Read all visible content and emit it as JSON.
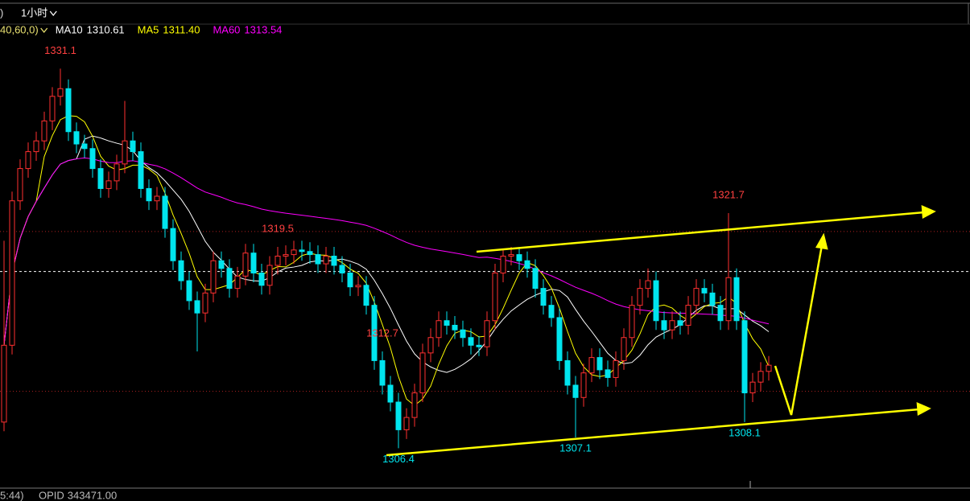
{
  "toolbar": {
    "left": ")",
    "period": "1小时"
  },
  "chart_data": {
    "type": "candlestick",
    "params": "40,60,0)",
    "indicators": [
      {
        "name": "MA10",
        "value": 1310.61,
        "color": "#ffffff"
      },
      {
        "name": "MA5",
        "value": 1311.4,
        "value_label": "1311.40",
        "color": "#ffff00"
      },
      {
        "name": "MA60",
        "value": 1313.54,
        "color": "#ff00ff"
      }
    ],
    "ylim": [
      1303.8,
      1334.0
    ],
    "up_color": "#ff3030",
    "down_color": "#00e5ee",
    "open": [
      1308.1,
      1313.1,
      1322.5,
      1324.6,
      1325.7,
      1326.4,
      1327.7,
      1329.3,
      1329.8,
      1327.0,
      1326.2,
      1325.9,
      1324.6,
      1323.3,
      1323.8,
      1324.9,
      1326.4,
      1325.7,
      1323.3,
      1322.5,
      1322.8,
      1320.7,
      1318.6,
      1317.3,
      1316.0,
      1315.2,
      1316.5,
      1318.6,
      1318.1,
      1316.8,
      1317.6,
      1319.1,
      1317.8,
      1317.0,
      1318.3,
      1318.9,
      1319.0,
      1319.3,
      1319.2,
      1319.0,
      1318.4,
      1318.9,
      1318.3,
      1317.8,
      1316.9,
      1317.0,
      1315.7,
      1312.1,
      1310.5,
      1309.4,
      1307.6,
      1308.4,
      1310.0,
      1312.6,
      1313.6,
      1314.7,
      1314.4,
      1314.1,
      1313.6,
      1313.1,
      1313.0,
      1314.7,
      1317.8,
      1318.9,
      1319.0,
      1318.6,
      1318.1,
      1316.8,
      1315.7,
      1314.9,
      1312.1,
      1310.5,
      1309.7,
      1311.3,
      1312.3,
      1311.5,
      1311.0,
      1312.1,
      1313.6,
      1315.7,
      1316.8,
      1317.3,
      1314.7,
      1314.1,
      1314.7,
      1314.4,
      1315.7,
      1316.8,
      1316.5,
      1315.7,
      1314.7,
      1317.5,
      1314.7,
      1310.0,
      1310.7,
      1311.4
    ],
    "high": [
      1319.9,
      1323.1,
      1325.2,
      1326.3,
      1327.0,
      1328.3,
      1329.9,
      1331.1,
      1330.4,
      1327.6,
      1326.8,
      1326.5,
      1325.2,
      1324.4,
      1325.5,
      1329.0,
      1327.0,
      1326.3,
      1323.9,
      1323.4,
      1323.4,
      1321.3,
      1319.2,
      1317.9,
      1316.6,
      1317.1,
      1319.2,
      1319.2,
      1318.7,
      1318.2,
      1319.7,
      1319.7,
      1318.4,
      1318.9,
      1319.5,
      1319.6,
      1319.9,
      1319.9,
      1319.8,
      1319.6,
      1319.5,
      1319.5,
      1318.9,
      1318.4,
      1317.6,
      1317.6,
      1316.3,
      1312.7,
      1311.1,
      1310.0,
      1309.0,
      1310.6,
      1313.2,
      1314.2,
      1315.3,
      1315.3,
      1315.0,
      1314.7,
      1314.2,
      1313.7,
      1315.3,
      1318.4,
      1319.4,
      1319.5,
      1319.4,
      1319.2,
      1318.7,
      1317.4,
      1316.3,
      1315.5,
      1312.7,
      1311.1,
      1311.9,
      1312.9,
      1312.9,
      1312.1,
      1312.7,
      1314.2,
      1316.3,
      1317.4,
      1318.1,
      1317.9,
      1315.3,
      1315.3,
      1315.3,
      1316.3,
      1317.4,
      1317.4,
      1317.1,
      1316.3,
      1321.7,
      1318.1,
      1315.3,
      1311.3,
      1312.0,
      1312.4
    ],
    "low": [
      1307.5,
      1312.5,
      1321.9,
      1324.0,
      1325.1,
      1325.8,
      1327.1,
      1328.7,
      1326.4,
      1325.6,
      1325.3,
      1324.0,
      1322.7,
      1322.7,
      1323.2,
      1324.3,
      1325.1,
      1322.7,
      1321.9,
      1321.9,
      1320.1,
      1318.0,
      1316.7,
      1315.4,
      1312.7,
      1314.6,
      1315.9,
      1317.5,
      1316.2,
      1316.2,
      1317.0,
      1317.2,
      1316.4,
      1316.4,
      1317.7,
      1318.3,
      1318.4,
      1318.6,
      1318.4,
      1317.8,
      1317.8,
      1317.7,
      1317.2,
      1316.3,
      1316.3,
      1315.1,
      1311.5,
      1309.9,
      1308.8,
      1306.4,
      1307.0,
      1307.8,
      1309.4,
      1312.0,
      1313.0,
      1313.8,
      1313.5,
      1313.0,
      1312.5,
      1312.4,
      1312.4,
      1314.1,
      1317.2,
      1318.3,
      1318.0,
      1317.5,
      1316.2,
      1315.1,
      1314.3,
      1311.5,
      1309.9,
      1307.1,
      1309.1,
      1310.7,
      1310.9,
      1310.4,
      1310.4,
      1311.5,
      1313.0,
      1315.1,
      1316.2,
      1314.1,
      1313.5,
      1313.5,
      1313.8,
      1313.8,
      1315.1,
      1315.9,
      1315.1,
      1314.1,
      1314.1,
      1314.1,
      1308.1,
      1309.4,
      1310.1,
      1310.8
    ],
    "close": [
      1313.1,
      1322.5,
      1324.6,
      1325.7,
      1326.4,
      1327.7,
      1329.3,
      1329.8,
      1327.0,
      1326.2,
      1325.9,
      1324.6,
      1323.3,
      1323.8,
      1324.9,
      1326.4,
      1325.7,
      1323.3,
      1322.5,
      1322.8,
      1320.7,
      1318.6,
      1317.3,
      1316.0,
      1315.2,
      1316.5,
      1318.6,
      1318.1,
      1316.8,
      1317.6,
      1319.1,
      1317.8,
      1317.0,
      1318.3,
      1318.9,
      1319.0,
      1319.3,
      1319.2,
      1319.0,
      1318.4,
      1318.9,
      1318.3,
      1317.8,
      1316.9,
      1317.0,
      1315.7,
      1312.1,
      1310.5,
      1309.4,
      1307.6,
      1308.4,
      1310.0,
      1312.6,
      1313.6,
      1314.7,
      1314.4,
      1314.1,
      1313.6,
      1313.1,
      1313.0,
      1314.7,
      1317.8,
      1318.9,
      1319.0,
      1318.6,
      1318.1,
      1316.8,
      1315.7,
      1314.9,
      1312.1,
      1310.5,
      1309.7,
      1311.3,
      1312.3,
      1311.5,
      1311.0,
      1312.1,
      1313.6,
      1315.7,
      1316.8,
      1317.3,
      1314.7,
      1314.1,
      1314.7,
      1314.4,
      1315.7,
      1316.8,
      1316.5,
      1315.7,
      1314.7,
      1317.5,
      1314.7,
      1310.0,
      1310.7,
      1311.4,
      1311.8
    ],
    "annotations": [
      1331.1,
      1312.7,
      1306.4,
      1319.5,
      1307.1,
      1321.7,
      1308.1
    ],
    "hlines": [
      {
        "value": 1320.5,
        "color": "#b02020",
        "style": "dotted"
      },
      {
        "value": 1317.9,
        "color": "#ffffff",
        "style": "dashed"
      },
      {
        "value": 1310.1,
        "color": "#b02020",
        "style": "dotted"
      }
    ]
  },
  "footer": {
    "time": "5:44)",
    "label": "OPID",
    "value": "343471.00"
  }
}
